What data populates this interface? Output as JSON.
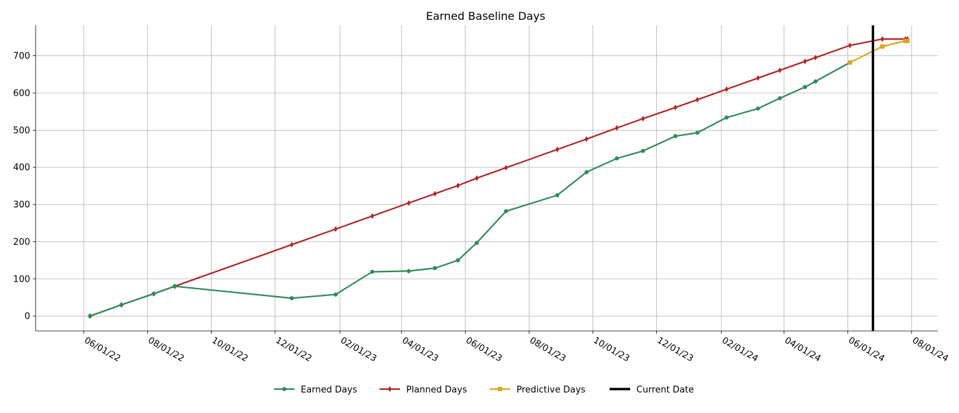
{
  "chart_data": {
    "type": "line",
    "title": "Earned Baseline Days",
    "xlabel": "",
    "ylabel": "",
    "xlim": [
      "2022-04-16",
      "2024-08-26"
    ],
    "ylim": [
      -40,
      782
    ],
    "grid": true,
    "legend_position": "bottom",
    "x_ticks": [
      "2022-06-01",
      "2022-08-01",
      "2022-10-01",
      "2022-12-01",
      "2023-02-01",
      "2023-04-01",
      "2023-06-01",
      "2023-08-01",
      "2023-10-01",
      "2023-12-01",
      "2024-02-01",
      "2024-04-01",
      "2024-06-01",
      "2024-08-01"
    ],
    "x_tick_labels": [
      "06/01/22",
      "08/01/22",
      "10/01/22",
      "12/01/22",
      "02/01/23",
      "04/01/23",
      "06/01/23",
      "08/01/23",
      "10/01/23",
      "12/01/23",
      "02/01/24",
      "04/01/24",
      "06/01/24",
      "08/01/24"
    ],
    "y_ticks": [
      0,
      100,
      200,
      300,
      400,
      500,
      600,
      700
    ],
    "y_tick_labels": [
      "0",
      "100",
      "200",
      "300",
      "400",
      "500",
      "600",
      "700"
    ],
    "current_date": "2024-06-25",
    "series": [
      {
        "name": "Earned Days",
        "color": "#2e8b57",
        "marker": "circle",
        "points": [
          {
            "x": "2022-06-07",
            "y": 0
          },
          {
            "x": "2022-07-07",
            "y": 30
          },
          {
            "x": "2022-08-07",
            "y": 60
          },
          {
            "x": "2022-08-27",
            "y": 80
          },
          {
            "x": "2022-12-17",
            "y": 48
          },
          {
            "x": "2023-01-28",
            "y": 58
          },
          {
            "x": "2023-03-04",
            "y": 119
          },
          {
            "x": "2023-04-08",
            "y": 121
          },
          {
            "x": "2023-05-03",
            "y": 129
          },
          {
            "x": "2023-05-25",
            "y": 150
          },
          {
            "x": "2023-06-12",
            "y": 197
          },
          {
            "x": "2023-07-10",
            "y": 282
          },
          {
            "x": "2023-08-28",
            "y": 325
          },
          {
            "x": "2023-09-25",
            "y": 387
          },
          {
            "x": "2023-10-24",
            "y": 424
          },
          {
            "x": "2023-11-18",
            "y": 444
          },
          {
            "x": "2023-12-19",
            "y": 484
          },
          {
            "x": "2024-01-09",
            "y": 493
          },
          {
            "x": "2024-02-06",
            "y": 534
          },
          {
            "x": "2024-03-07",
            "y": 558
          },
          {
            "x": "2024-03-28",
            "y": 586
          },
          {
            "x": "2024-04-21",
            "y": 616
          },
          {
            "x": "2024-05-01",
            "y": 631
          },
          {
            "x": "2024-06-03",
            "y": 682
          }
        ]
      },
      {
        "name": "Planned Days",
        "color": "#b22222",
        "marker": "diamond",
        "points": [
          {
            "x": "2022-06-07",
            "y": 0
          },
          {
            "x": "2022-07-07",
            "y": 30
          },
          {
            "x": "2022-08-07",
            "y": 60
          },
          {
            "x": "2022-08-27",
            "y": 80
          },
          {
            "x": "2022-12-17",
            "y": 192
          },
          {
            "x": "2023-01-28",
            "y": 234
          },
          {
            "x": "2023-03-04",
            "y": 269
          },
          {
            "x": "2023-04-08",
            "y": 304
          },
          {
            "x": "2023-05-03",
            "y": 329
          },
          {
            "x": "2023-05-25",
            "y": 351
          },
          {
            "x": "2023-06-12",
            "y": 371
          },
          {
            "x": "2023-07-10",
            "y": 399
          },
          {
            "x": "2023-08-28",
            "y": 448
          },
          {
            "x": "2023-09-25",
            "y": 476
          },
          {
            "x": "2023-10-24",
            "y": 506
          },
          {
            "x": "2023-11-18",
            "y": 531
          },
          {
            "x": "2023-12-19",
            "y": 561
          },
          {
            "x": "2024-01-09",
            "y": 582
          },
          {
            "x": "2024-02-06",
            "y": 610
          },
          {
            "x": "2024-03-07",
            "y": 640
          },
          {
            "x": "2024-03-28",
            "y": 661
          },
          {
            "x": "2024-04-21",
            "y": 685
          },
          {
            "x": "2024-05-01",
            "y": 695
          },
          {
            "x": "2024-06-03",
            "y": 728
          },
          {
            "x": "2024-07-04",
            "y": 745
          },
          {
            "x": "2024-07-26",
            "y": 745
          },
          {
            "x": "2024-07-28",
            "y": 745
          }
        ]
      },
      {
        "name": "Predictive Days",
        "color": "#daa520",
        "marker": "square",
        "points": [
          {
            "x": "2024-06-03",
            "y": 682
          },
          {
            "x": "2024-07-04",
            "y": 725
          },
          {
            "x": "2024-07-26",
            "y": 740
          },
          {
            "x": "2024-07-28",
            "y": 740
          }
        ]
      }
    ],
    "legend": [
      {
        "label": "Earned Days",
        "color": "#2e8b57",
        "marker": "circle"
      },
      {
        "label": "Planned Days",
        "color": "#b22222",
        "marker": "diamond"
      },
      {
        "label": "Predictive Days",
        "color": "#daa520",
        "marker": "square"
      },
      {
        "label": "Current Date",
        "color": "#000000",
        "marker": "none"
      }
    ]
  }
}
